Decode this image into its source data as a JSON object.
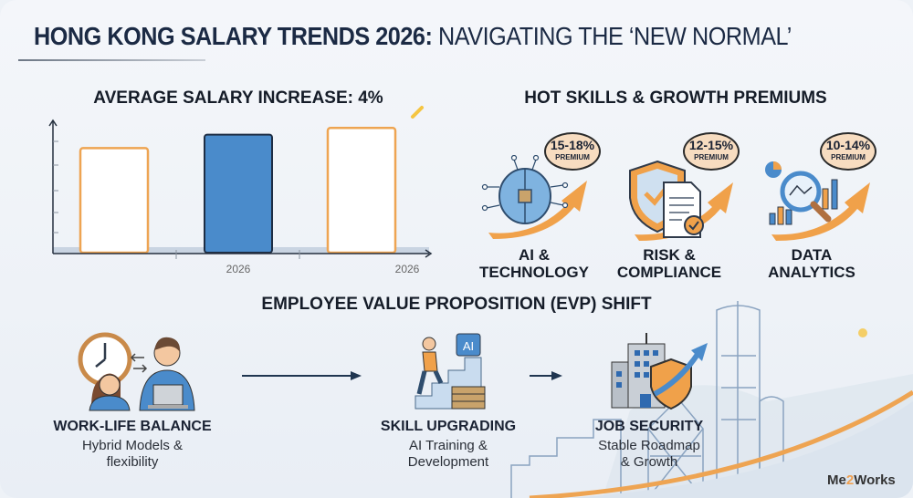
{
  "title": {
    "bold": "HONG KONG SALARY TRENDS 2026:",
    "regular": "NAVIGATING THE ‘NEW NORMAL’"
  },
  "salary_section": {
    "heading": "AVERAGE SALARY INCREASE: 4%"
  },
  "chart_data": {
    "type": "bar",
    "categories": [
      "",
      "2026",
      "2026"
    ],
    "values": [
      0.78,
      0.88,
      0.93
    ],
    "value_note": "relative bar heights; no axis values printed",
    "colors": [
      "#ffffff",
      "#4a8bcb",
      "#ffffff"
    ],
    "outline_colors": [
      "#eea452",
      "#1d2d44",
      "#eea452"
    ],
    "tick_labels": [
      "2026",
      "2026"
    ],
    "grid": false
  },
  "skills_section": {
    "heading": "HOT SKILLS & GROWTH PREMIUMS",
    "items": [
      {
        "premium": "15-18%",
        "premium_label": "PREMIUM",
        "label_line1": "AI &",
        "label_line2": "TECHNOLOGY",
        "icon": "brain-chip-icon"
      },
      {
        "premium": "12-15%",
        "premium_label": "PREMIUM",
        "label_line1": "RISK &",
        "label_line2": "COMPLIANCE",
        "icon": "shield-document-icon"
      },
      {
        "premium": "10-14%",
        "premium_label": "PREMIUM",
        "label_line1": "DATA",
        "label_line2": "ANALYTICS",
        "icon": "magnifier-chart-icon"
      }
    ]
  },
  "evp_section": {
    "heading": "EMPLOYEE VALUE PROPOSITION (EVP) SHIFT",
    "items": [
      {
        "title": "WORK-LIFE BALANCE",
        "line1": "Hybrid Models &",
        "line2": "flexibility",
        "icon": "people-clock-icon"
      },
      {
        "title": "SKILL UPGRADING",
        "line1": "AI Training &",
        "line2": "Development",
        "icon": "stairs-ai-icon",
        "chip_text": "AI"
      },
      {
        "title": "JOB SECURITY",
        "line1": "Stable Roadmap",
        "line2": "& Growth",
        "icon": "building-shield-icon"
      }
    ]
  },
  "brand": {
    "part1": "Me",
    "part2": "2",
    "part3": "Works"
  },
  "colors": {
    "navy": "#1b2a44",
    "orange": "#eea452",
    "blue": "#4a8bcb"
  }
}
